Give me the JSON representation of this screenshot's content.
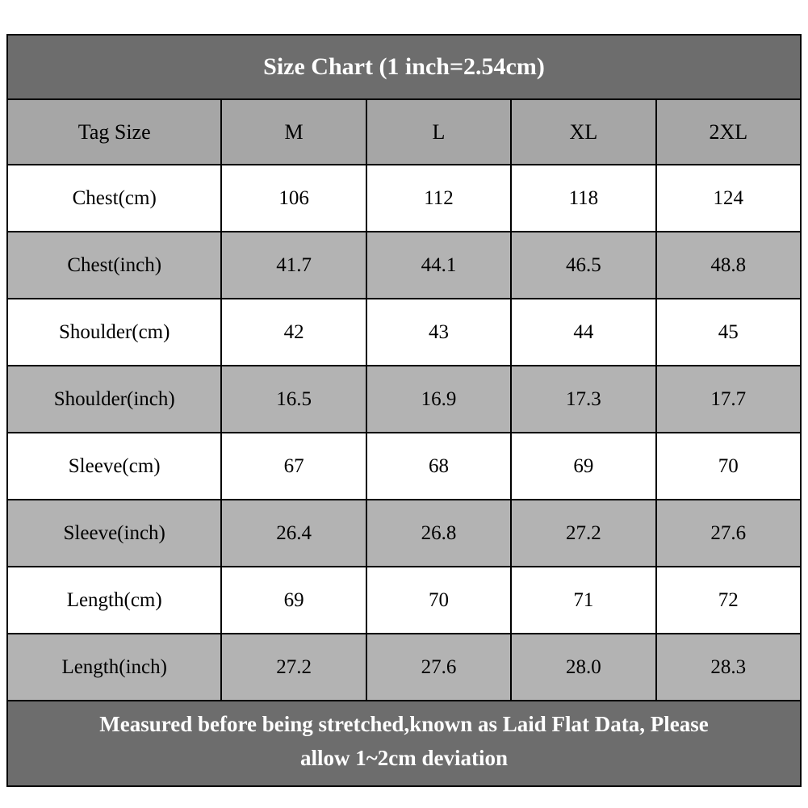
{
  "title": "Size Chart (1 inch=2.54cm)",
  "table": {
    "columns": [
      "Tag Size",
      "M",
      "L",
      "XL",
      "2XL"
    ],
    "rows": [
      {
        "label": "Chest(cm)",
        "values": [
          "106",
          "112",
          "118",
          "124"
        ]
      },
      {
        "label": "Chest(inch)",
        "values": [
          "41.7",
          "44.1",
          "46.5",
          "48.8"
        ]
      },
      {
        "label": "Shoulder(cm)",
        "values": [
          "42",
          "43",
          "44",
          "45"
        ]
      },
      {
        "label": "Shoulder(inch)",
        "values": [
          "16.5",
          "16.9",
          "17.3",
          "17.7"
        ]
      },
      {
        "label": "Sleeve(cm)",
        "values": [
          "67",
          "68",
          "69",
          "70"
        ]
      },
      {
        "label": "Sleeve(inch)",
        "values": [
          "26.4",
          "26.8",
          "27.2",
          "27.6"
        ]
      },
      {
        "label": "Length(cm)",
        "values": [
          "69",
          "70",
          "71",
          "72"
        ]
      },
      {
        "label": "Length(inch)",
        "values": [
          "27.2",
          "27.6",
          "28.0",
          "28.3"
        ]
      }
    ]
  },
  "footer": {
    "line1": "Measured before being stretched,known as Laid Flat Data, Please",
    "line2": "allow 1~2cm deviation"
  },
  "colors": {
    "banner_bg": "#6d6d6d",
    "banner_text": "#ffffff",
    "header_row_bg": "#a6a6a6",
    "alt_row_bg": "#b3b3b3",
    "row_bg": "#ffffff",
    "border": "#000000",
    "text": "#000000"
  },
  "chart_data": {
    "type": "table",
    "title": "Size Chart (1 inch=2.54cm)",
    "columns": [
      "Tag Size",
      "M",
      "L",
      "XL",
      "2XL"
    ],
    "rows": [
      [
        "Chest(cm)",
        106,
        112,
        118,
        124
      ],
      [
        "Chest(inch)",
        41.7,
        44.1,
        46.5,
        48.8
      ],
      [
        "Shoulder(cm)",
        42,
        43,
        44,
        45
      ],
      [
        "Shoulder(inch)",
        16.5,
        16.9,
        17.3,
        17.7
      ],
      [
        "Sleeve(cm)",
        67,
        68,
        69,
        70
      ],
      [
        "Sleeve(inch)",
        26.4,
        26.8,
        27.2,
        27.6
      ],
      [
        "Length(cm)",
        69,
        70,
        71,
        72
      ],
      [
        "Length(inch)",
        27.2,
        27.6,
        28.0,
        28.3
      ]
    ],
    "footnote": "Measured before being stretched,known as Laid Flat Data, Please allow 1~2cm deviation",
    "layout": "banner title row on top, shaded header row, alternating white/gray body rows, banner footnote row"
  }
}
